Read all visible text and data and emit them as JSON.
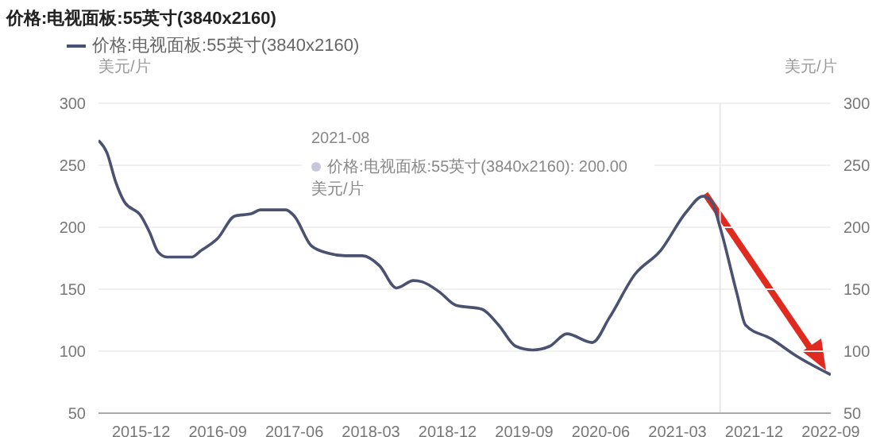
{
  "chart_data": {
    "type": "line",
    "title": "价格:电视面板:55英寸(3840x2160)",
    "ylabel": "美元/片",
    "y2label": "美元/片",
    "series": [
      {
        "name": "价格:电视面板:55英寸(3840x2160)",
        "color": "#4b5170",
        "x": [
          "2015-07",
          "2015-08",
          "2015-09",
          "2015-10",
          "2015-12",
          "2016-01",
          "2016-02",
          "2016-03",
          "2016-06",
          "2016-07",
          "2016-09",
          "2016-11",
          "2017-01",
          "2017-02",
          "2017-05",
          "2017-06",
          "2017-08",
          "2017-10",
          "2017-12",
          "2018-02",
          "2018-04",
          "2018-06",
          "2018-08",
          "2018-09",
          "2018-11",
          "2019-01",
          "2019-04",
          "2019-06",
          "2019-08",
          "2019-10",
          "2019-12",
          "2020-02",
          "2020-05",
          "2020-07",
          "2020-10",
          "2021-01",
          "2021-04",
          "2021-06",
          "2021-07",
          "2021-08",
          "2021-10",
          "2021-11",
          "2022-02",
          "2022-05",
          "2022-09"
        ],
        "values": [
          270,
          260,
          237,
          221,
          209,
          196,
          180,
          176,
          176,
          181,
          191,
          209,
          211,
          214,
          214,
          209,
          185,
          179,
          177,
          177,
          169,
          151,
          157,
          156,
          148,
          137,
          134,
          121,
          104,
          101,
          104,
          114,
          107,
          127,
          162,
          181,
          212,
          225,
          221,
          200,
          146,
          121,
          110,
          96,
          81
        ]
      }
    ],
    "xlim": [
      "2015-07",
      "2022-09"
    ],
    "xticks": [
      "2015-12",
      "2016-09",
      "2017-06",
      "2018-03",
      "2018-12",
      "2019-09",
      "2020-06",
      "2021-03",
      "2021-12",
      "2022-09"
    ],
    "ylim": [
      50,
      300
    ],
    "yticks": [
      50,
      100,
      150,
      200,
      250,
      300
    ],
    "y2lim": [
      50,
      300
    ],
    "y2ticks": [
      50,
      100,
      150,
      200,
      250,
      300
    ],
    "grid": "y",
    "legend": "top left",
    "marker": "none",
    "line_style": "solid",
    "ref_lines": [
      {
        "axis": "x",
        "value": "2021-08",
        "color": "#e8e8e8",
        "line_style": "solid"
      }
    ],
    "annotations": [
      "2021-08",
      "价格:电视面板:55英寸(3840x2160): 200.00 美元/片"
    ]
  }
}
